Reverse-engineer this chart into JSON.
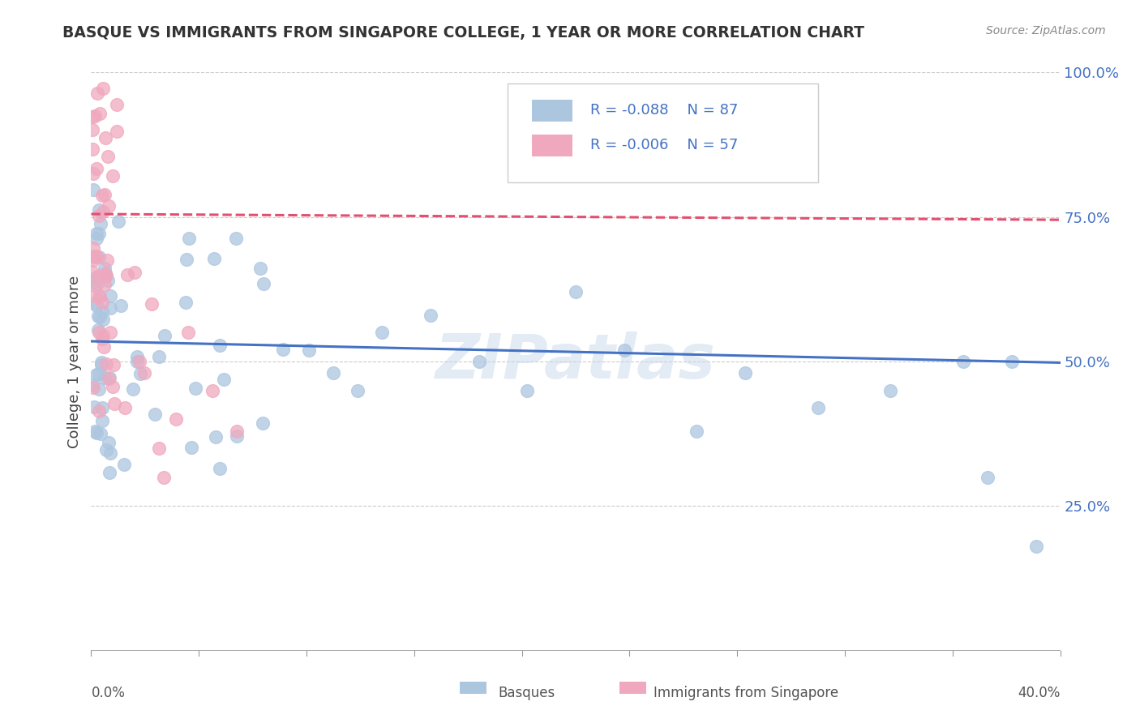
{
  "title": "BASQUE VS IMMIGRANTS FROM SINGAPORE COLLEGE, 1 YEAR OR MORE CORRELATION CHART",
  "source_text": "Source: ZipAtlas.com",
  "ylabel": "College, 1 year or more",
  "xlabel_basque": "Basques",
  "xlabel_singapore": "Immigrants from Singapore",
  "watermark": "ZIPatlas",
  "xlim": [
    0.0,
    0.4
  ],
  "ylim": [
    0.0,
    1.0
  ],
  "xtick_left": "0.0%",
  "xtick_right": "40.0%",
  "ytick_labels": [
    "25.0%",
    "50.0%",
    "75.0%",
    "100.0%"
  ],
  "ytick_vals": [
    0.25,
    0.5,
    0.75,
    1.0
  ],
  "legend_r_basque": "R = -0.088",
  "legend_n_basque": "N = 87",
  "legend_r_singapore": "R = -0.006",
  "legend_n_singapore": "N = 57",
  "blue_color": "#adc6e0",
  "pink_color": "#f0a8be",
  "blue_line_color": "#4472c4",
  "pink_line_color": "#e05070",
  "grid_color": "#cccccc",
  "text_color": "#4472c4",
  "blue_trend_x": [
    0.0,
    0.4
  ],
  "blue_trend_y": [
    0.535,
    0.498
  ],
  "pink_trend_x": [
    0.0,
    0.4
  ],
  "pink_trend_y": [
    0.755,
    0.745
  ]
}
